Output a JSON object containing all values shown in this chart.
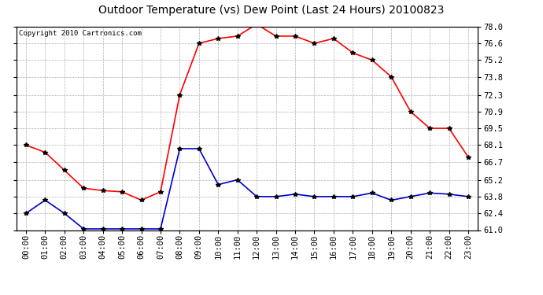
{
  "title": "Outdoor Temperature (vs) Dew Point (Last 24 Hours) 20100823",
  "copyright": "Copyright 2010 Cartronics.com",
  "x_labels": [
    "00:00",
    "01:00",
    "02:00",
    "03:00",
    "04:00",
    "05:00",
    "06:00",
    "07:00",
    "08:00",
    "09:00",
    "10:00",
    "11:00",
    "12:00",
    "13:00",
    "14:00",
    "15:00",
    "16:00",
    "17:00",
    "18:00",
    "19:00",
    "20:00",
    "21:00",
    "22:00",
    "23:00"
  ],
  "temp_data": [
    68.1,
    67.5,
    66.0,
    64.5,
    64.3,
    64.2,
    63.5,
    64.2,
    72.3,
    76.6,
    77.0,
    77.2,
    78.2,
    77.2,
    77.2,
    76.6,
    77.0,
    75.8,
    75.2,
    73.8,
    70.9,
    69.5,
    69.5,
    67.1
  ],
  "dew_data": [
    62.4,
    63.5,
    62.4,
    61.1,
    61.1,
    61.1,
    61.1,
    61.1,
    67.8,
    67.8,
    64.8,
    65.2,
    63.8,
    63.8,
    64.0,
    63.8,
    63.8,
    63.8,
    64.1,
    63.5,
    63.8,
    64.1,
    64.0,
    63.8
  ],
  "temp_color": "#ff0000",
  "dew_color": "#0000cc",
  "marker": "*",
  "marker_color": "#000000",
  "marker_size": 4,
  "ylim": [
    61.0,
    78.0
  ],
  "yticks": [
    61.0,
    62.4,
    63.8,
    65.2,
    66.7,
    68.1,
    69.5,
    70.9,
    72.3,
    73.8,
    75.2,
    76.6,
    78.0
  ],
  "grid_color": "#b0b0b0",
  "bg_color": "#ffffff",
  "title_fontsize": 10,
  "copyright_fontsize": 6.5,
  "axis_label_fontsize": 7.5
}
